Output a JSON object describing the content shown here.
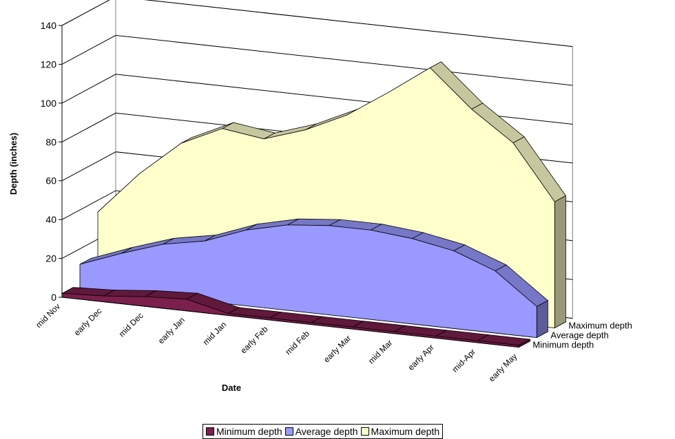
{
  "colors": {
    "min_depth": "#7B1F4C",
    "avg_depth": "#9999FF",
    "max_depth": "#FFFFCC",
    "gridline": "#000000",
    "floor": "#808080"
  },
  "chart_data": {
    "type": "area",
    "subtype": "3d-area",
    "title": "",
    "xlabel": "Date",
    "ylabel": "Depth (inches)",
    "categories": [
      "mid Nov",
      "early Dec",
      "mid Dec",
      "early Jan",
      "mid Jan",
      "early Feb",
      "mid Feb",
      "early Mar",
      "mid Mar",
      "early Apr",
      "mid-Apr",
      "early May"
    ],
    "ylim": [
      0,
      140
    ],
    "yticks": [
      0,
      20,
      40,
      60,
      80,
      100,
      120,
      140
    ],
    "grid": true,
    "legend_position": "bottom",
    "series": [
      {
        "name": "Minimum depth",
        "values": [
          2,
          3,
          5,
          6,
          1,
          1,
          1,
          1,
          1,
          1,
          1,
          1
        ]
      },
      {
        "name": "Average depth",
        "values": [
          12,
          20,
          27,
          31,
          39,
          44,
          46,
          46,
          44,
          40,
          32,
          16
        ]
      },
      {
        "name": "Maximum depth",
        "values": [
          34,
          56,
          74,
          84,
          81,
          88,
          98,
          112,
          127,
          108,
          93,
          65
        ]
      }
    ]
  }
}
